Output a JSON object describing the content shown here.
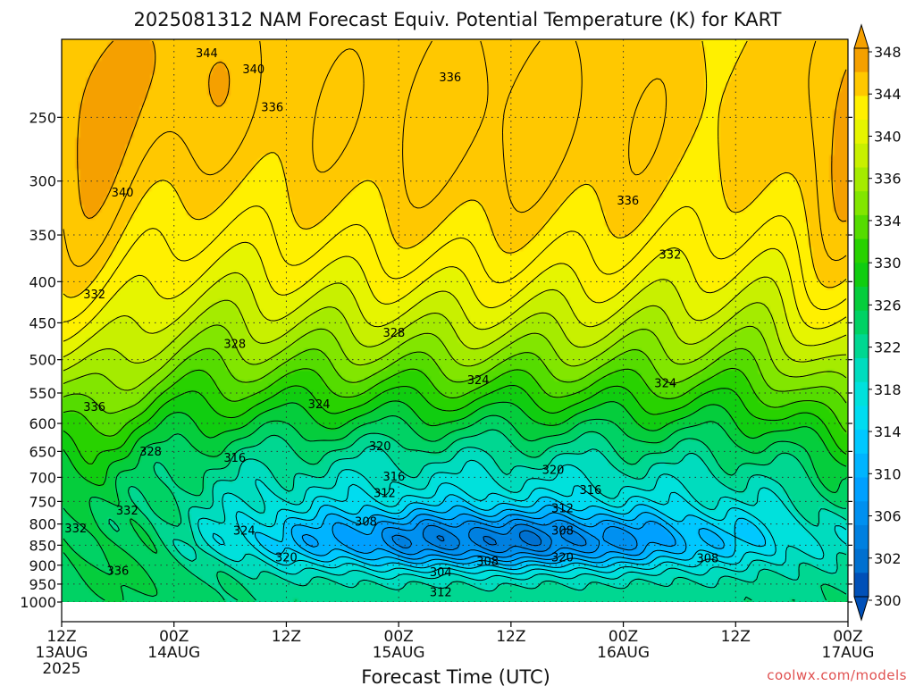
{
  "chart_data": {
    "type": "heatmap",
    "title": "2025081312 NAM Forecast Equiv. Potential Temperature (K) for KART",
    "xlabel": "Forecast Time (UTC)",
    "ylabel": "",
    "x_ticks": [
      {
        "hour": 0,
        "label": "12Z",
        "date": "13AUG",
        "year": "2025"
      },
      {
        "hour": 12,
        "label": "00Z",
        "date": "14AUG",
        "year": ""
      },
      {
        "hour": 24,
        "label": "12Z",
        "date": "",
        "year": ""
      },
      {
        "hour": 36,
        "label": "00Z",
        "date": "15AUG",
        "year": ""
      },
      {
        "hour": 48,
        "label": "12Z",
        "date": "",
        "year": ""
      },
      {
        "hour": 60,
        "label": "00Z",
        "date": "16AUG",
        "year": ""
      },
      {
        "hour": 72,
        "label": "12Z",
        "date": "",
        "year": ""
      },
      {
        "hour": 84,
        "label": "00Z",
        "date": "17AUG",
        "year": ""
      }
    ],
    "xlim": [
      0,
      84
    ],
    "y_ticks": [
      250,
      300,
      350,
      400,
      450,
      500,
      550,
      600,
      650,
      700,
      750,
      800,
      850,
      900,
      950,
      1000
    ],
    "ylim": [
      1000,
      200
    ],
    "yscale": "log-pressure",
    "grid": true,
    "colorbar": {
      "labels": [
        348,
        344,
        340,
        336,
        334,
        330,
        326,
        322,
        318,
        314,
        310,
        306,
        302,
        300
      ],
      "bins": [
        {
          "value": 348,
          "color": "#f5a000"
        },
        {
          "value": 344,
          "color": "#ffc800"
        },
        {
          "value": 340,
          "color": "#fff000"
        },
        {
          "value": 338,
          "color": "#e6f500"
        },
        {
          "value": 336,
          "color": "#c8f000"
        },
        {
          "value": 334,
          "color": "#a5eb00"
        },
        {
          "value": 332,
          "color": "#82e600"
        },
        {
          "value": 330,
          "color": "#55dc00"
        },
        {
          "value": 328,
          "color": "#28d200"
        },
        {
          "value": 326,
          "color": "#10cd10"
        },
        {
          "value": 324,
          "color": "#05cd3c"
        },
        {
          "value": 322,
          "color": "#00d264"
        },
        {
          "value": 320,
          "color": "#00d791"
        },
        {
          "value": 318,
          "color": "#00dcbe"
        },
        {
          "value": 316,
          "color": "#00e1dc"
        },
        {
          "value": 314,
          "color": "#00dcf0"
        },
        {
          "value": 312,
          "color": "#00c8ff"
        },
        {
          "value": 310,
          "color": "#00b4ff"
        },
        {
          "value": 308,
          "color": "#00a0ff"
        },
        {
          "value": 306,
          "color": "#0090f0"
        },
        {
          "value": 304,
          "color": "#0080e0"
        },
        {
          "value": 302,
          "color": "#0070d0"
        },
        {
          "value": 300,
          "color": "#0050b8"
        }
      ]
    },
    "contour_labels": [
      {
        "value": 344,
        "hour": 15.5,
        "p": 208
      },
      {
        "value": 340,
        "hour": 20.5,
        "p": 218
      },
      {
        "value": 336,
        "hour": 41.5,
        "p": 223
      },
      {
        "value": 336,
        "hour": 22.5,
        "p": 243
      },
      {
        "value": 340,
        "hour": 6.5,
        "p": 310
      },
      {
        "value": 336,
        "hour": 60.5,
        "p": 317
      },
      {
        "value": 332,
        "hour": 65.0,
        "p": 370
      },
      {
        "value": 332,
        "hour": 3.5,
        "p": 415
      },
      {
        "value": 328,
        "hour": 18.5,
        "p": 478
      },
      {
        "value": 328,
        "hour": 35.5,
        "p": 463
      },
      {
        "value": 324,
        "hour": 44.5,
        "p": 530
      },
      {
        "value": 324,
        "hour": 64.5,
        "p": 535
      },
      {
        "value": 324,
        "hour": 27.5,
        "p": 568
      },
      {
        "value": 336,
        "hour": 3.5,
        "p": 572
      },
      {
        "value": 328,
        "hour": 9.5,
        "p": 650
      },
      {
        "value": 320,
        "hour": 34.0,
        "p": 640
      },
      {
        "value": 320,
        "hour": 52.5,
        "p": 685
      },
      {
        "value": 316,
        "hour": 18.5,
        "p": 662
      },
      {
        "value": 316,
        "hour": 35.5,
        "p": 698
      },
      {
        "value": 316,
        "hour": 56.5,
        "p": 726
      },
      {
        "value": 312,
        "hour": 34.5,
        "p": 732
      },
      {
        "value": 312,
        "hour": 53.5,
        "p": 765
      },
      {
        "value": 332,
        "hour": 7.0,
        "p": 770
      },
      {
        "value": 308,
        "hour": 32.5,
        "p": 795
      },
      {
        "value": 308,
        "hour": 53.5,
        "p": 815
      },
      {
        "value": 332,
        "hour": 1.5,
        "p": 810
      },
      {
        "value": 324,
        "hour": 19.5,
        "p": 815
      },
      {
        "value": 320,
        "hour": 24.0,
        "p": 880
      },
      {
        "value": 320,
        "hour": 53.5,
        "p": 880
      },
      {
        "value": 308,
        "hour": 45.5,
        "p": 890
      },
      {
        "value": 308,
        "hour": 69.0,
        "p": 882
      },
      {
        "value": 336,
        "hour": 6.0,
        "p": 915
      },
      {
        "value": 304,
        "hour": 40.5,
        "p": 918
      },
      {
        "value": 312,
        "hour": 40.5,
        "p": 972
      }
    ]
  },
  "credit": "coolwx.com/models",
  "colors": {
    "ground": "#a0522d",
    "contour": "#000000",
    "grid": "#333333"
  }
}
